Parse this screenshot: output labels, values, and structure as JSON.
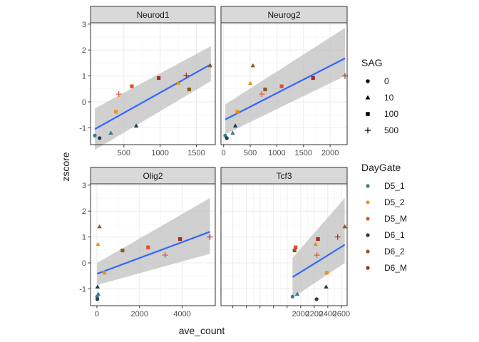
{
  "chart_data": {
    "type": "scatter",
    "xlabel": "ave_count",
    "ylabel": "zscore",
    "ylim": [
      -1.65,
      3.05
    ],
    "yticks": [
      -1,
      0,
      1,
      2,
      3
    ],
    "colors": {
      "D5_1": "#3B7A8F",
      "D5_2": "#E8951C",
      "D5_M": "#E0502E",
      "D6_1": "#1E3D4F",
      "D6_2": "#8A5A1A",
      "D6_M": "#A8281C",
      "line": "#3366FF",
      "ribbon": "#BEBEBE"
    },
    "legends": {
      "sag": {
        "title": "SAG",
        "entries": [
          {
            "label": "0",
            "shape": "circle"
          },
          {
            "label": "10",
            "shape": "triangle"
          },
          {
            "label": "100",
            "shape": "square"
          },
          {
            "label": "500",
            "shape": "plus"
          }
        ]
      },
      "daygate": {
        "title": "DayGate",
        "entries": [
          "D5_1",
          "D5_2",
          "D5_M",
          "D6_1",
          "D6_2",
          "D6_M"
        ]
      }
    },
    "panels": [
      {
        "title": "Neurod1",
        "xlim": [
          40,
          1760
        ],
        "xticks": [
          500,
          1000,
          1500
        ],
        "fit": {
          "x": [
            100,
            1700
          ],
          "y": [
            -1.05,
            1.45
          ],
          "lo": [
            -1.85,
            0.8
          ],
          "hi": [
            -0.25,
            2.15
          ]
        },
        "points": [
          {
            "x": 100,
            "y": -1.3,
            "sag": "0",
            "day": "D5_1"
          },
          {
            "x": 165,
            "y": -1.4,
            "sag": "0",
            "day": "D6_1"
          },
          {
            "x": 320,
            "y": -1.2,
            "sag": "10",
            "day": "D5_1"
          },
          {
            "x": 670,
            "y": -0.92,
            "sag": "10",
            "day": "D6_1"
          },
          {
            "x": 390,
            "y": -0.38,
            "sag": "100",
            "day": "D5_2"
          },
          {
            "x": 430,
            "y": 0.3,
            "sag": "500",
            "day": "D5_M"
          },
          {
            "x": 610,
            "y": 0.6,
            "sag": "100",
            "day": "D5_M"
          },
          {
            "x": 980,
            "y": 0.92,
            "sag": "100",
            "day": "D6_M"
          },
          {
            "x": 1250,
            "y": 0.72,
            "sag": "10",
            "day": "D5_2"
          },
          {
            "x": 1360,
            "y": 1.02,
            "sag": "500",
            "day": "D6_M"
          },
          {
            "x": 1400,
            "y": 0.48,
            "sag": "100",
            "day": "D6_2"
          },
          {
            "x": 1690,
            "y": 1.4,
            "sag": "10",
            "day": "D6_2"
          }
        ]
      },
      {
        "title": "Neurog2",
        "xlim": [
          -50,
          2320
        ],
        "xticks": [
          0,
          500,
          1000,
          1500,
          2000
        ],
        "fit": {
          "x": [
            30,
            2280
          ],
          "y": [
            -0.68,
            1.68
          ],
          "lo": [
            -1.25,
            1.0
          ],
          "hi": [
            -0.1,
            2.85
          ]
        },
        "points": [
          {
            "x": 30,
            "y": -1.3,
            "sag": "0",
            "day": "D5_1"
          },
          {
            "x": 60,
            "y": -1.4,
            "sag": "0",
            "day": "D6_1"
          },
          {
            "x": 170,
            "y": -1.2,
            "sag": "10",
            "day": "D5_1"
          },
          {
            "x": 220,
            "y": -0.92,
            "sag": "10",
            "day": "D6_1"
          },
          {
            "x": 260,
            "y": -0.38,
            "sag": "100",
            "day": "D5_2"
          },
          {
            "x": 500,
            "y": 0.72,
            "sag": "10",
            "day": "D5_2"
          },
          {
            "x": 550,
            "y": 1.4,
            "sag": "10",
            "day": "D6_2"
          },
          {
            "x": 720,
            "y": 0.3,
            "sag": "500",
            "day": "D5_M"
          },
          {
            "x": 780,
            "y": 0.48,
            "sag": "100",
            "day": "D6_2"
          },
          {
            "x": 1090,
            "y": 0.6,
            "sag": "100",
            "day": "D5_M"
          },
          {
            "x": 1680,
            "y": 0.92,
            "sag": "100",
            "day": "D6_M"
          },
          {
            "x": 2280,
            "y": 1.0,
            "sag": "500",
            "day": "D6_M"
          }
        ]
      },
      {
        "title": "Olig2",
        "xlim": [
          -300,
          5550
        ],
        "xticks": [
          0,
          2000,
          4000
        ],
        "fit": {
          "x": [
            10,
            5300
          ],
          "y": [
            -0.42,
            1.2
          ],
          "lo": [
            -0.85,
            0.35
          ],
          "hi": [
            0.0,
            2.5
          ]
        },
        "points": [
          {
            "x": 10,
            "y": -1.3,
            "sag": "0",
            "day": "D5_1"
          },
          {
            "x": 20,
            "y": -1.4,
            "sag": "0",
            "day": "D6_1"
          },
          {
            "x": 60,
            "y": -1.2,
            "sag": "10",
            "day": "D5_1"
          },
          {
            "x": 30,
            "y": -0.92,
            "sag": "10",
            "day": "D6_1"
          },
          {
            "x": 50,
            "y": 0.72,
            "sag": "10",
            "day": "D5_2"
          },
          {
            "x": 120,
            "y": 1.4,
            "sag": "10",
            "day": "D6_2"
          },
          {
            "x": 350,
            "y": -0.38,
            "sag": "100",
            "day": "D5_2"
          },
          {
            "x": 1200,
            "y": 0.48,
            "sag": "100",
            "day": "D6_2"
          },
          {
            "x": 2400,
            "y": 0.6,
            "sag": "100",
            "day": "D5_M"
          },
          {
            "x": 3200,
            "y": 0.3,
            "sag": "500",
            "day": "D5_M"
          },
          {
            "x": 3900,
            "y": 0.92,
            "sag": "100",
            "day": "D6_M"
          },
          {
            "x": 5300,
            "y": 1.0,
            "sag": "500",
            "day": "D6_M"
          }
        ]
      },
      {
        "title": "Tcf3",
        "xlim": [
          825,
          2685
        ],
        "xticks": [
          1000,
          1200,
          1400,
          1600,
          1800,
          2000,
          2200,
          2400,
          2600
        ],
        "xticklabels": [
          "",
          "",
          "",
          "",
          "",
          "2000",
          "2200",
          "2400",
          "2600"
        ],
        "fit": {
          "x": [
            1880,
            2650
          ],
          "y": [
            -0.55,
            0.7
          ],
          "lo": [
            -1.35,
            0.0
          ],
          "hi": [
            0.2,
            2.5
          ]
        },
        "points": [
          {
            "x": 1880,
            "y": -1.3,
            "sag": "0",
            "day": "D5_1"
          },
          {
            "x": 1950,
            "y": -1.2,
            "sag": "10",
            "day": "D5_1"
          },
          {
            "x": 1910,
            "y": 0.48,
            "sag": "100",
            "day": "D6_2"
          },
          {
            "x": 1925,
            "y": 0.6,
            "sag": "100",
            "day": "D5_M"
          },
          {
            "x": 2220,
            "y": 0.72,
            "sag": "10",
            "day": "D5_2"
          },
          {
            "x": 2235,
            "y": -1.4,
            "sag": "0",
            "day": "D6_1"
          },
          {
            "x": 2240,
            "y": 0.3,
            "sag": "500",
            "day": "D5_M"
          },
          {
            "x": 2255,
            "y": 0.92,
            "sag": "100",
            "day": "D6_M"
          },
          {
            "x": 2375,
            "y": -0.92,
            "sag": "10",
            "day": "D6_1"
          },
          {
            "x": 2385,
            "y": -0.38,
            "sag": "100",
            "day": "D5_2"
          },
          {
            "x": 2545,
            "y": 1.0,
            "sag": "500",
            "day": "D6_M"
          },
          {
            "x": 2650,
            "y": 1.4,
            "sag": "10",
            "day": "D6_2"
          }
        ]
      }
    ]
  }
}
